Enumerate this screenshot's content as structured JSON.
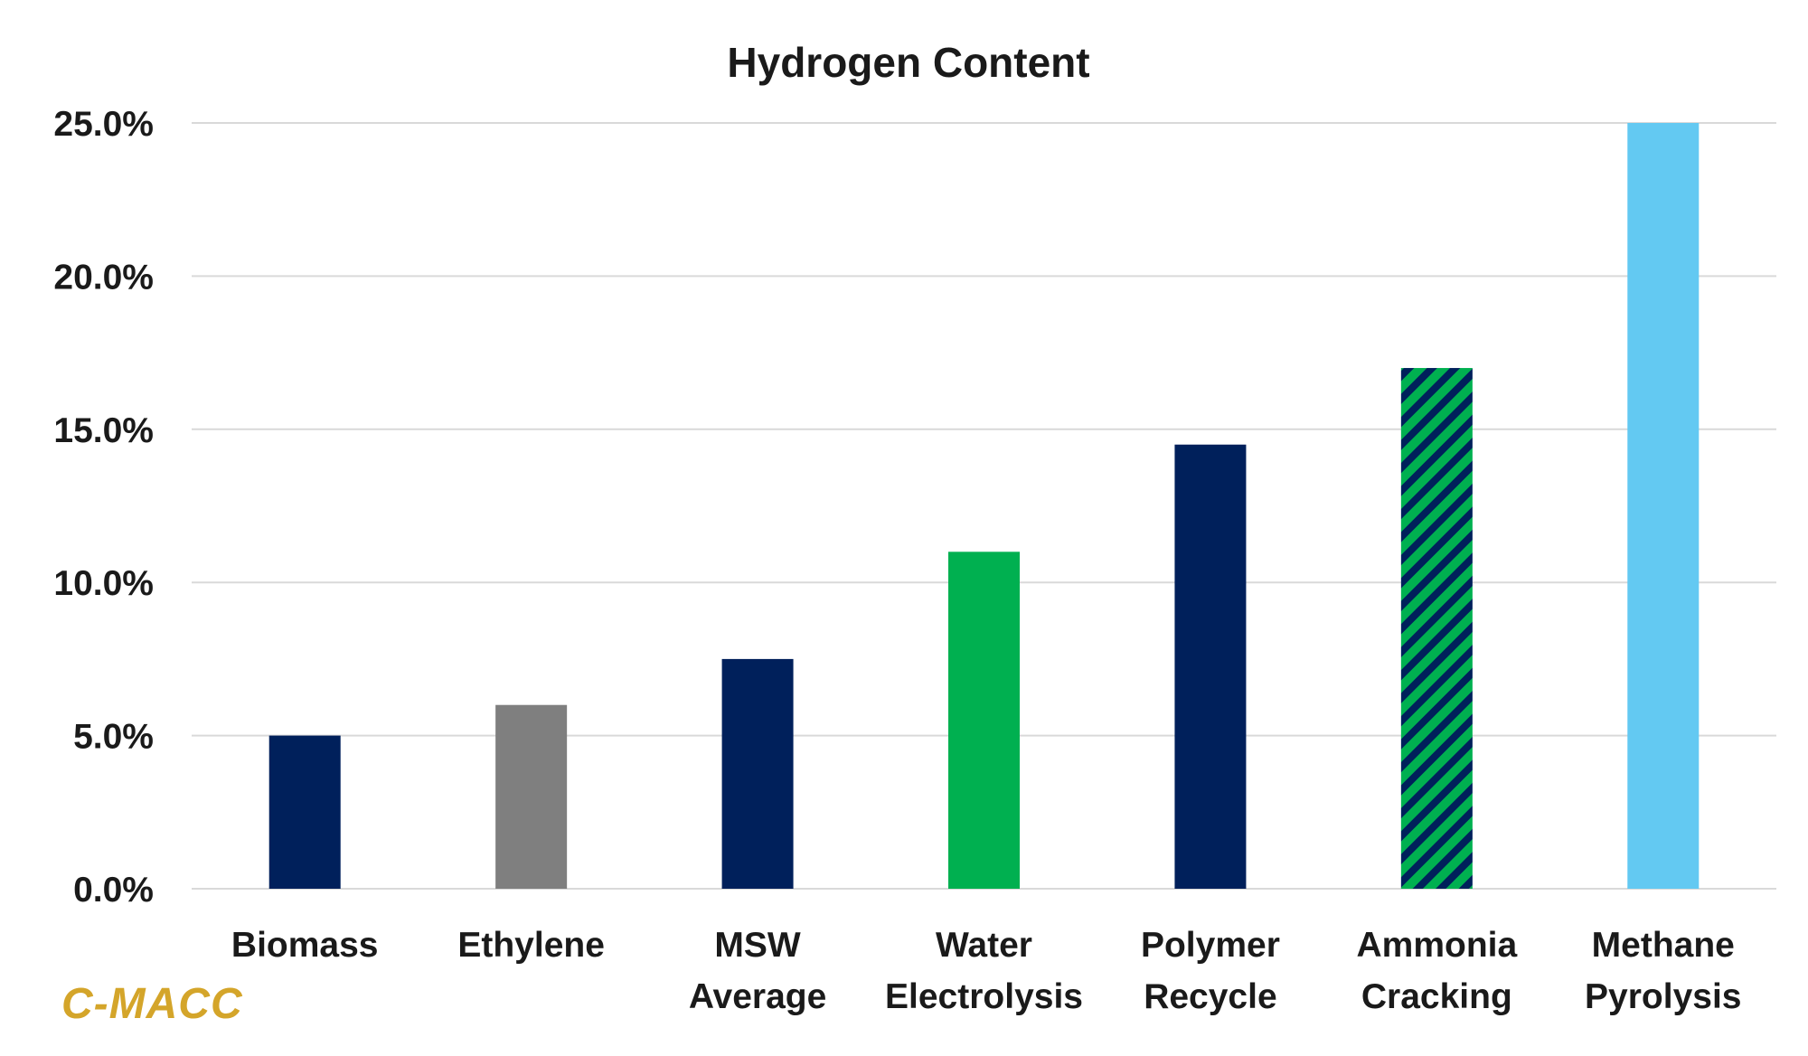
{
  "chart_data": {
    "type": "bar",
    "title": "Hydrogen Content",
    "xlabel": "",
    "ylabel": "",
    "categories": [
      [
        "Biomass"
      ],
      [
        "Ethylene"
      ],
      [
        "MSW",
        "Average"
      ],
      [
        "Water",
        "Electrolysis"
      ],
      [
        "Polymer",
        "Recycle"
      ],
      [
        "Ammonia",
        "Cracking"
      ],
      [
        "Methane",
        "Pyrolysis"
      ]
    ],
    "values": [
      5.0,
      6.0,
      7.5,
      11.0,
      14.5,
      17.0,
      25.0
    ],
    "ylim": [
      0,
      25
    ],
    "yticks": [
      0,
      5,
      10,
      15,
      20,
      25
    ],
    "ytick_labels": [
      "0.0%",
      "5.0%",
      "10.0%",
      "15.0%",
      "20.0%",
      "25.0%"
    ],
    "grid": true,
    "bar_colors": [
      "#00205b",
      "#7f7f7f",
      "#00205b",
      "#00b050",
      "#00205b",
      "hatch",
      "#63c9f2"
    ],
    "hatch_colors": [
      "#00b050",
      "#00205b"
    ]
  },
  "colors": {
    "gridline": "#d9d9d9",
    "axis_text": "#1a1a1a",
    "watermark": "#d4a52a"
  },
  "watermark": "C-MACC"
}
